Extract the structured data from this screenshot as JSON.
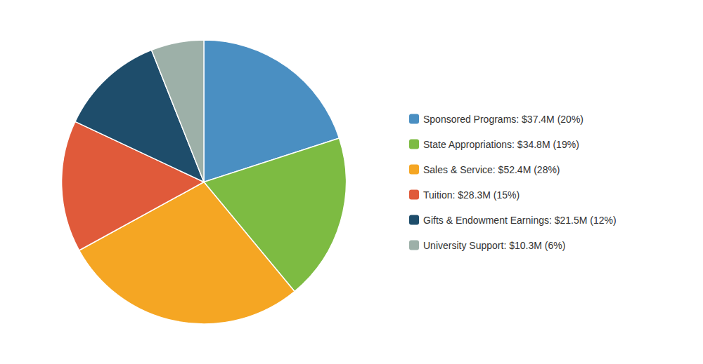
{
  "chart_data": {
    "type": "pie",
    "categories": [
      "Sponsored Programs: $37.4M (20%)",
      "State Appropriations: $34.8M (19%)",
      "Sales & Service: $52.4M (28%)",
      "Tuition: $28.3M (15%)",
      "Gifts & Endowment Earnings: $21.5M (12%)",
      "University Support: $10.3M (6%)"
    ],
    "values": [
      20,
      19,
      28,
      15,
      12,
      6
    ],
    "colors": [
      "#4a8fc2",
      "#7dbb42",
      "#f5a623",
      "#e05a3a",
      "#1e4d6b",
      "#9db0a8"
    ],
    "legend": "right"
  }
}
